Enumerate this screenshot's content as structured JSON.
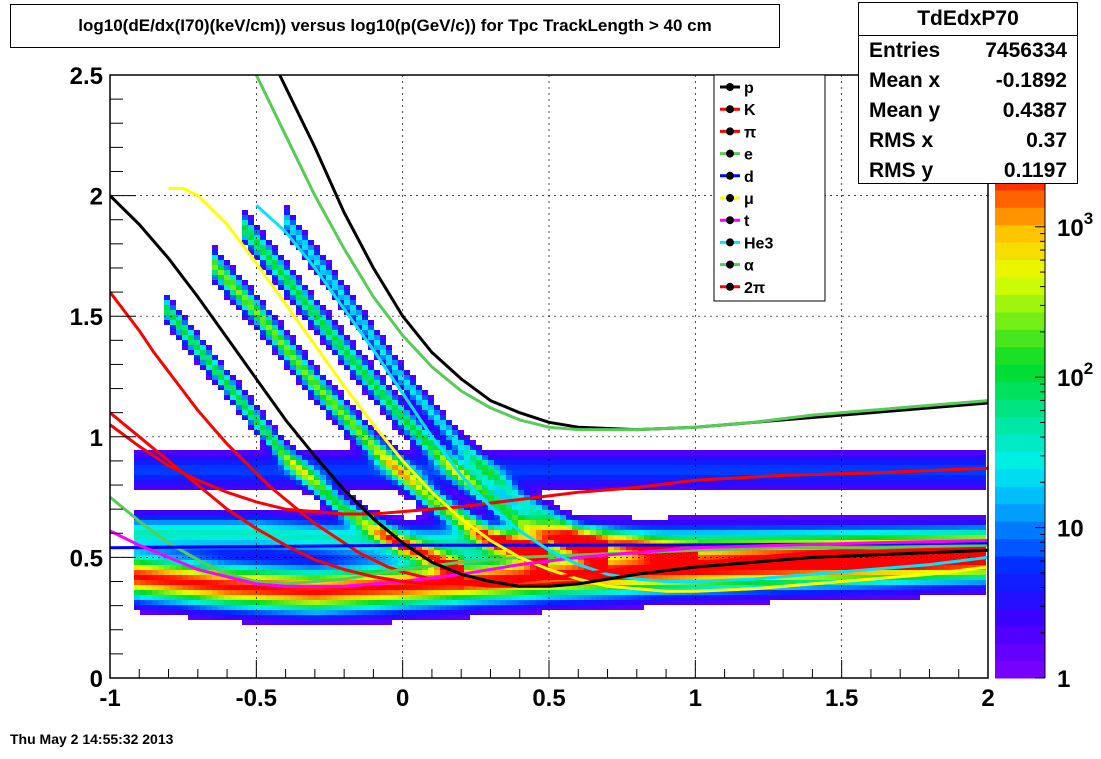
{
  "histogram": {
    "name": "TdEdxP70",
    "title": "log10(dE/dx(I70)(keV/cm)) versus log10(p(GeV/c)) for Tpc TrackLength > 40 cm"
  },
  "stats": {
    "title": "TdEdxP70",
    "rows": [
      {
        "label": "Entries",
        "value": "7456334"
      },
      {
        "label": "Mean x",
        "value": "-0.1892"
      },
      {
        "label": "Mean y",
        "value": "0.4387"
      },
      {
        "label": "RMS x",
        "value": "0.37"
      },
      {
        "label": "RMS y",
        "value": "0.1197"
      }
    ]
  },
  "timestamp": "Thu May  2 14:55:32 2013",
  "chart_data": {
    "type": "heatmap",
    "xlabel": "",
    "ylabel": "",
    "xlim": [
      -1,
      2
    ],
    "ylim": [
      0,
      2.5
    ],
    "grid": true,
    "x_ticks": [
      -1,
      -0.5,
      0,
      0.5,
      1,
      1.5,
      2
    ],
    "x_tick_labels": [
      "-1",
      "-0.5",
      "0",
      "0.5",
      "1",
      "1.5",
      "2"
    ],
    "y_ticks": [
      0,
      0.5,
      1,
      1.5,
      2,
      2.5
    ],
    "y_tick_labels": [
      "0",
      "0.5",
      "1",
      "1.5",
      "2",
      "2.5"
    ],
    "colorbar": {
      "scale": "log",
      "range": [
        1,
        3000
      ],
      "tick_labels": [
        {
          "value": 1,
          "label": "1"
        },
        {
          "value": 10,
          "label": "10"
        },
        {
          "value": 100,
          "base": "10",
          "exp": "2"
        },
        {
          "value": 1000,
          "base": "10",
          "exp": "3"
        }
      ]
    },
    "legend_position": "top-right",
    "series": [
      {
        "name": "p",
        "color": "#000000",
        "x": [
          -0.42,
          -0.3,
          -0.2,
          -0.1,
          0.0,
          0.1,
          0.2,
          0.3,
          0.4,
          0.5,
          0.6,
          0.8,
          1.0,
          1.3,
          1.6,
          2.0
        ],
        "y": [
          2.5,
          2.2,
          1.93,
          1.7,
          1.5,
          1.35,
          1.24,
          1.15,
          1.1,
          1.06,
          1.04,
          1.03,
          1.04,
          1.07,
          1.1,
          1.14
        ]
      },
      {
        "name": "K",
        "color": "#ff0000",
        "x": [
          -1.0,
          -0.9,
          -0.8,
          -0.7,
          -0.6,
          -0.5,
          -0.4,
          -0.3,
          -0.2,
          -0.1,
          0.0,
          0.2,
          0.4,
          0.6,
          0.8,
          1.0,
          1.3,
          1.6,
          2.0
        ],
        "y": [
          1.05,
          0.96,
          0.88,
          0.82,
          0.77,
          0.73,
          0.7,
          0.69,
          0.68,
          0.68,
          0.69,
          0.71,
          0.74,
          0.77,
          0.79,
          0.82,
          0.84,
          0.85,
          0.87
        ]
      },
      {
        "name": "π",
        "color": "#ff0000",
        "x": [
          -1.0,
          -0.95,
          -0.9,
          -0.85,
          -0.8,
          -0.75,
          -0.7,
          -0.65,
          -0.6,
          -0.55,
          -0.5,
          -0.45,
          -0.4,
          -0.35,
          -0.3,
          -0.25,
          -0.2,
          -0.15,
          -0.1,
          -0.05,
          0.0,
          0.1,
          0.2,
          0.3,
          0.4,
          0.5,
          0.6,
          0.7,
          0.8,
          0.9,
          1.0,
          1.2,
          1.4,
          1.6,
          1.8,
          2.0
        ],
        "y": [
          1.6,
          1.52,
          1.44,
          1.35,
          1.27,
          1.19,
          1.11,
          1.04,
          0.97,
          0.91,
          0.85,
          0.79,
          0.74,
          0.69,
          0.64,
          0.6,
          0.56,
          0.52,
          0.49,
          0.46,
          0.44,
          0.41,
          0.39,
          0.38,
          0.38,
          0.39,
          0.4,
          0.42,
          0.44,
          0.46,
          0.47,
          0.5,
          0.52,
          0.54,
          0.55,
          0.56
        ]
      },
      {
        "name": "e",
        "color": "#55cc55",
        "x": [
          -1.0,
          -0.9,
          -0.8,
          -0.7,
          -0.6,
          -0.5,
          -0.4,
          -0.3,
          -0.2,
          -0.1,
          0.0,
          0.2,
          0.4,
          0.6,
          0.8,
          1.0,
          1.3,
          1.6,
          2.0
        ],
        "y": [
          0.75,
          0.65,
          0.56,
          0.49,
          0.43,
          0.4,
          0.39,
          0.4,
          0.41,
          0.43,
          0.45,
          0.48,
          0.5,
          0.51,
          0.52,
          0.53,
          0.54,
          0.54,
          0.55
        ]
      },
      {
        "name": "d",
        "color": "#0000ff",
        "x": [
          -1.0,
          -0.5,
          0.0,
          0.5,
          1.0,
          1.5,
          2.0
        ],
        "y": [
          0.54,
          0.545,
          0.55,
          0.55,
          0.552,
          0.555,
          0.56
        ]
      },
      {
        "name": "μ",
        "color": "#ffff00",
        "x": [
          -0.8,
          -0.75,
          -0.7,
          -0.6,
          -0.5,
          -0.4,
          -0.3,
          -0.2,
          -0.1,
          0.0,
          0.1,
          0.2,
          0.3,
          0.4,
          0.5,
          0.6,
          0.7,
          0.8,
          0.9,
          1.0,
          1.2,
          1.4,
          1.6,
          1.8,
          2.0
        ],
        "y": [
          2.03,
          2.03,
          2.0,
          1.88,
          1.72,
          1.55,
          1.38,
          1.21,
          1.05,
          0.9,
          0.77,
          0.66,
          0.57,
          0.5,
          0.45,
          0.41,
          0.38,
          0.37,
          0.36,
          0.36,
          0.37,
          0.39,
          0.41,
          0.43,
          0.46
        ]
      },
      {
        "name": "t",
        "color": "#ff00ff",
        "x": [
          -1.0,
          -0.9,
          -0.8,
          -0.7,
          -0.6,
          -0.5,
          -0.4,
          -0.3,
          -0.2,
          -0.1,
          0.0,
          0.2,
          0.4,
          0.6,
          0.8,
          1.0,
          1.3,
          1.6,
          2.0
        ],
        "y": [
          0.61,
          0.55,
          0.5,
          0.45,
          0.42,
          0.39,
          0.38,
          0.38,
          0.38,
          0.39,
          0.4,
          0.43,
          0.47,
          0.5,
          0.52,
          0.54,
          0.55,
          0.56,
          0.57
        ]
      },
      {
        "name": "He3",
        "color": "#00e5ff",
        "x": [
          -0.5,
          -0.4,
          -0.3,
          -0.2,
          -0.1,
          0.0,
          0.1,
          0.2,
          0.3,
          0.4,
          0.5,
          0.6,
          0.7,
          0.8,
          0.9,
          1.0,
          1.2,
          1.4,
          1.6,
          1.8,
          2.0
        ],
        "y": [
          1.96,
          1.85,
          1.7,
          1.53,
          1.36,
          1.18,
          1.0,
          0.84,
          0.71,
          0.61,
          0.53,
          0.47,
          0.43,
          0.41,
          0.4,
          0.4,
          0.41,
          0.43,
          0.45,
          0.47,
          0.5
        ]
      },
      {
        "name": "α",
        "color": "#55cc55",
        "x": [
          -0.5,
          -0.4,
          -0.3,
          -0.2,
          -0.1,
          0.0,
          0.1,
          0.2,
          0.3,
          0.4,
          0.5,
          0.6,
          0.7,
          0.8,
          1.0,
          1.2,
          1.4,
          1.6,
          1.8,
          2.0
        ],
        "y": [
          2.5,
          2.25,
          2.0,
          1.78,
          1.58,
          1.42,
          1.29,
          1.19,
          1.12,
          1.07,
          1.04,
          1.03,
          1.03,
          1.03,
          1.04,
          1.06,
          1.09,
          1.11,
          1.13,
          1.15
        ]
      },
      {
        "name": "2π",
        "color": "#ff0000",
        "x": [
          -1.0,
          -0.9,
          -0.8,
          -0.7,
          -0.6,
          -0.5,
          -0.4,
          -0.3,
          -0.2,
          -0.1,
          0.0,
          0.1,
          0.2,
          0.4,
          0.6,
          0.8,
          1.0,
          1.3,
          1.6,
          2.0
        ],
        "y": [
          1.1,
          1.0,
          0.9,
          0.8,
          0.7,
          0.62,
          0.55,
          0.49,
          0.45,
          0.42,
          0.4,
          0.39,
          0.39,
          0.4,
          0.43,
          0.46,
          0.48,
          0.5,
          0.52,
          0.53
        ]
      },
      {
        "name": "",
        "color": "#000000",
        "x": [
          -1.0,
          -0.9,
          -0.8,
          -0.7,
          -0.6,
          -0.5,
          -0.4,
          -0.3,
          -0.2,
          -0.1,
          0.0,
          0.1,
          0.2,
          0.3,
          0.4,
          0.5,
          0.6,
          0.7,
          0.8,
          1.0,
          1.2,
          1.4,
          1.6,
          1.8,
          2.0
        ],
        "y": [
          2.0,
          1.88,
          1.74,
          1.58,
          1.41,
          1.24,
          1.07,
          0.92,
          0.78,
          0.66,
          0.56,
          0.48,
          0.43,
          0.4,
          0.38,
          0.38,
          0.39,
          0.41,
          0.43,
          0.46,
          0.48,
          0.5,
          0.51,
          0.52,
          0.53
        ]
      }
    ]
  }
}
